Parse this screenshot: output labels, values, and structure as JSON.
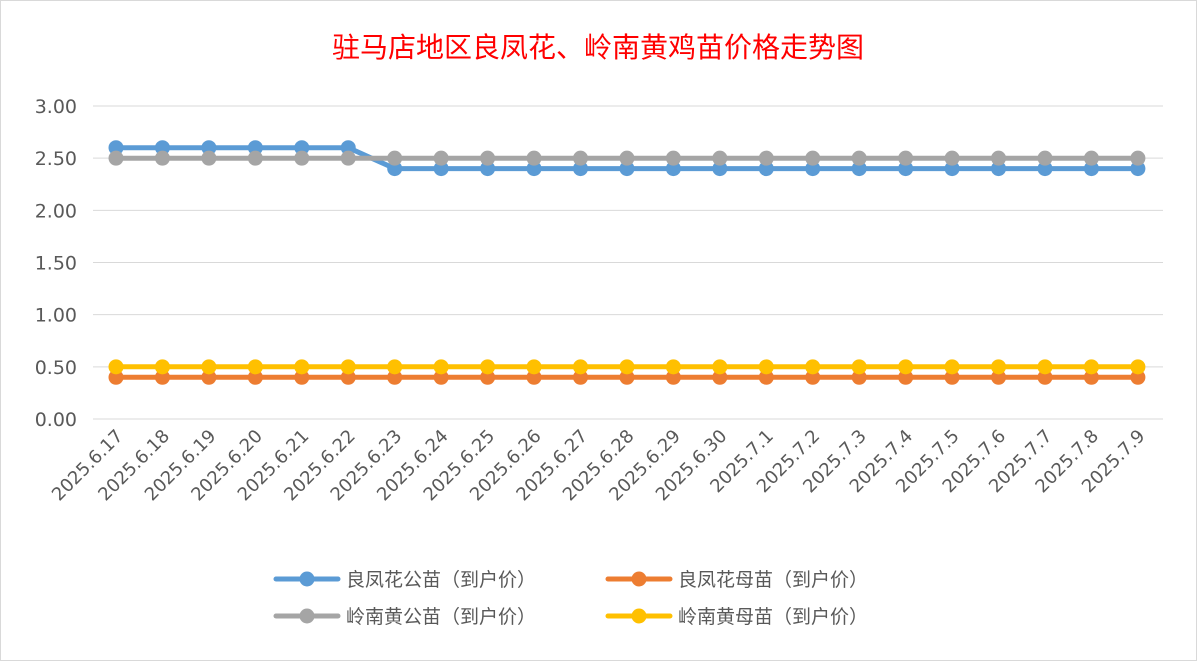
{
  "chart_data": {
    "type": "line",
    "title": "驻马店地区良凤花、岭南黄鸡苗价格走势图",
    "xlabel": "",
    "ylabel": "",
    "ylim": [
      0,
      3
    ],
    "yticks": [
      "0.00",
      "0.50",
      "1.00",
      "1.50",
      "2.00",
      "2.50",
      "3.00"
    ],
    "grid": true,
    "legend_position": "bottom",
    "categories": [
      "2025.6.17",
      "2025.6.18",
      "2025.6.19",
      "2025.6.20",
      "2025.6.21",
      "2025.6.22",
      "2025.6.23",
      "2025.6.24",
      "2025.6.25",
      "2025.6.26",
      "2025.6.27",
      "2025.6.28",
      "2025.6.29",
      "2025.6.30",
      "2025.7.1",
      "2025.7.2",
      "2025.7.3",
      "2025.7.4",
      "2025.7.5",
      "2025.7.6",
      "2025.7.7",
      "2025.7.8",
      "2025.7.9"
    ],
    "series": [
      {
        "name": "良凤花公苗（到户价）",
        "color": "#5b9bd5",
        "values": [
          2.6,
          2.6,
          2.6,
          2.6,
          2.6,
          2.6,
          2.4,
          2.4,
          2.4,
          2.4,
          2.4,
          2.4,
          2.4,
          2.4,
          2.4,
          2.4,
          2.4,
          2.4,
          2.4,
          2.4,
          2.4,
          2.4,
          2.4
        ]
      },
      {
        "name": "良凤花母苗（到户价）",
        "color": "#ed7d31",
        "values": [
          0.4,
          0.4,
          0.4,
          0.4,
          0.4,
          0.4,
          0.4,
          0.4,
          0.4,
          0.4,
          0.4,
          0.4,
          0.4,
          0.4,
          0.4,
          0.4,
          0.4,
          0.4,
          0.4,
          0.4,
          0.4,
          0.4,
          0.4
        ]
      },
      {
        "name": "岭南黄公苗（到户价）",
        "color": "#a5a5a5",
        "values": [
          2.5,
          2.5,
          2.5,
          2.5,
          2.5,
          2.5,
          2.5,
          2.5,
          2.5,
          2.5,
          2.5,
          2.5,
          2.5,
          2.5,
          2.5,
          2.5,
          2.5,
          2.5,
          2.5,
          2.5,
          2.5,
          2.5,
          2.5
        ]
      },
      {
        "name": "岭南黄母苗（到户价）",
        "color": "#ffc000",
        "values": [
          0.5,
          0.5,
          0.5,
          0.5,
          0.5,
          0.5,
          0.5,
          0.5,
          0.5,
          0.5,
          0.5,
          0.5,
          0.5,
          0.5,
          0.5,
          0.5,
          0.5,
          0.5,
          0.5,
          0.5,
          0.5,
          0.5,
          0.5
        ]
      }
    ]
  }
}
